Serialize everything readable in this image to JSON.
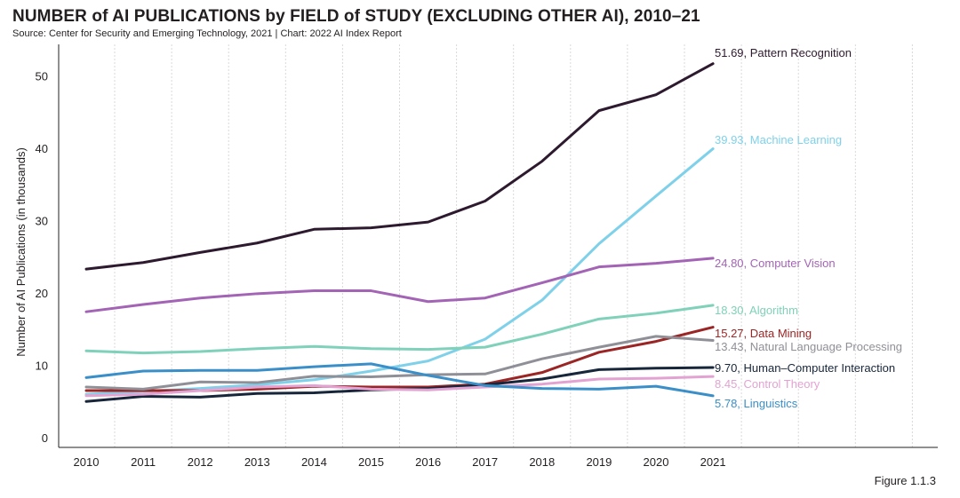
{
  "header": {
    "title": "NUMBER of AI PUBLICATIONS by FIELD of STUDY (EXCLUDING OTHER AI), 2010–21",
    "source": "Source: Center for Security and Emerging Technology, 2021 | Chart: 2022 AI Index Report"
  },
  "figure_label": "Figure 1.1.3",
  "chart_data": {
    "type": "line",
    "title": "NUMBER of AI PUBLICATIONS by FIELD of STUDY (EXCLUDING OTHER AI), 2010–21",
    "xlabel": "",
    "ylabel": "Number of AI Publications (in thousands)",
    "ylim": [
      0,
      53
    ],
    "yticks": [
      0,
      10,
      20,
      30,
      40,
      50
    ],
    "grid": "vertical",
    "categories": [
      "2010",
      "2011",
      "2012",
      "2013",
      "2014",
      "2015",
      "2016",
      "2017",
      "2018",
      "2019",
      "2020",
      "2021"
    ],
    "series": [
      {
        "name": "Pattern Recognition",
        "label": "51.69, Pattern Recognition",
        "color": "#2d1a2e",
        "values": [
          23.3,
          24.2,
          25.6,
          26.9,
          28.8,
          29.0,
          29.8,
          32.7,
          38.2,
          45.2,
          47.4,
          51.69
        ]
      },
      {
        "name": "Machine Learning",
        "label": "39.93, Machine Learning",
        "color": "#7fd1ea",
        "values": [
          6.0,
          6.4,
          6.8,
          7.3,
          8.0,
          9.2,
          10.6,
          13.6,
          19.0,
          26.8,
          33.4,
          39.93
        ]
      },
      {
        "name": "Computer Vision",
        "label": "24.80, Computer Vision",
        "color": "#a364b5",
        "values": [
          17.4,
          18.4,
          19.3,
          19.9,
          20.3,
          20.3,
          18.8,
          19.3,
          21.4,
          23.6,
          24.1,
          24.8
        ]
      },
      {
        "name": "Algorithm",
        "label": "18.30, Algorithm",
        "color": "#7fd1b9",
        "values": [
          12.0,
          11.7,
          11.9,
          12.3,
          12.6,
          12.3,
          12.2,
          12.5,
          14.3,
          16.4,
          17.2,
          18.3
        ]
      },
      {
        "name": "Data Mining",
        "label": "15.27, Data Mining",
        "color": "#9b2524",
        "values": [
          6.5,
          6.5,
          6.5,
          6.7,
          7.1,
          7.0,
          7.0,
          7.4,
          9.0,
          11.8,
          13.3,
          15.27
        ]
      },
      {
        "name": "Natural Language Processing",
        "label": "13.43, Natural Language Processing",
        "color": "#8f8f97",
        "values": [
          7.0,
          6.7,
          7.7,
          7.6,
          8.5,
          8.4,
          8.7,
          8.8,
          10.9,
          12.5,
          14.0,
          13.43
        ]
      },
      {
        "name": "Human–Computer Interaction",
        "label": "9.70, Human–Computer Interaction",
        "color": "#17263a",
        "values": [
          5.0,
          5.7,
          5.6,
          6.1,
          6.2,
          6.6,
          6.8,
          7.3,
          8.1,
          9.4,
          9.6,
          9.7
        ]
      },
      {
        "name": "Control Theory",
        "label": "8.45, Control Theory",
        "color": "#e3a3d2",
        "values": [
          5.8,
          6.0,
          6.5,
          7.0,
          7.2,
          6.7,
          6.6,
          7.0,
          7.4,
          8.1,
          8.2,
          8.45
        ]
      },
      {
        "name": "Linguistics",
        "label": "5.78, Linguistics",
        "color": "#3a8fc9",
        "values": [
          8.3,
          9.2,
          9.3,
          9.3,
          9.8,
          10.2,
          8.6,
          7.2,
          6.8,
          6.7,
          7.1,
          5.78
        ]
      }
    ]
  }
}
